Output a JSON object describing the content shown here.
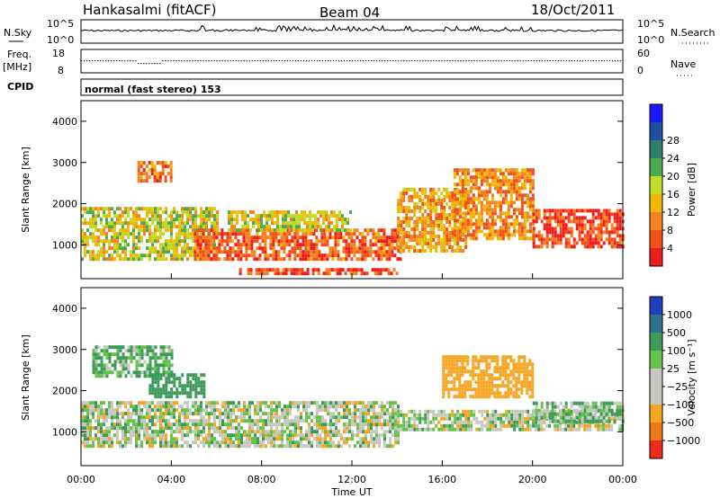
{
  "header": {
    "station": "Hankasalmi (fitACF)",
    "beam": "Beam 04",
    "date": "18/Oct/2011"
  },
  "panels": {
    "nsky": {
      "label": "N.Sky",
      "ytick_top": "10^5",
      "ytick_bottom": "10^0"
    },
    "nsearch": {
      "label": "N.Search",
      "ytick_top": "10^5",
      "ytick_bottom": "10^0"
    },
    "freq": {
      "label_line1": "Freq.",
      "label_line2": "[MHz]",
      "ytick_top": "18",
      "ytick_bottom": "8"
    },
    "nave": {
      "label": "Nave",
      "ytick_top": "60",
      "ytick_bottom": "0"
    },
    "cpid": {
      "label": "CPID",
      "text": "normal (fast stereo) 153"
    }
  },
  "power_panel": {
    "ylabel": "Slant Range [km]",
    "yticks": [
      "1000",
      "2000",
      "3000",
      "4000"
    ],
    "colorbar_label": "Power [dB]",
    "colorbar_ticks": [
      "4",
      "8",
      "12",
      "16",
      "20",
      "24",
      "28"
    ],
    "colors": [
      "#1a1aff",
      "#1f4fa0",
      "#2e7d6e",
      "#4cab4f",
      "#bfdc2b",
      "#f2b705",
      "#f58220",
      "#f25016",
      "#ee1c1c"
    ]
  },
  "velocity_panel": {
    "ylabel": "Slant Range [km]",
    "yticks": [
      "1000",
      "2000",
      "3000",
      "4000"
    ],
    "colorbar_label": "Velocity [m s⁻¹]",
    "colorbar_ticks": [
      "1000",
      "500",
      "100",
      "25",
      "−25",
      "−100",
      "−500",
      "−1000"
    ],
    "colors": [
      "#1f3fbf",
      "#2f6f8f",
      "#3c9a5a",
      "#66c24a",
      "#c8c8c0",
      "#c8c8c0",
      "#f6a623",
      "#f07a1a",
      "#ee2a1a"
    ]
  },
  "time_axis": {
    "label": "Time UT",
    "ticks": [
      "00:00",
      "04:00",
      "08:00",
      "12:00",
      "16:00",
      "20:00",
      "00:00"
    ]
  },
  "chart_data": {
    "type": "heatmap",
    "title": "Hankasalmi (fitACF)  Beam 04  18/Oct/2011",
    "xlabel": "Time UT",
    "x_range_hours": [
      0,
      24
    ],
    "ylabel": "Slant Range [km]",
    "y_range_km": [
      180,
      4500
    ],
    "series": [
      {
        "name": "Power [dB]",
        "z_range": [
          0,
          30
        ],
        "regions": [
          {
            "t0": 0.0,
            "t1": 6.0,
            "r0": 700,
            "r1": 2000,
            "level": 0.55
          },
          {
            "t0": 2.5,
            "t1": 4.0,
            "r0": 2600,
            "r1": 3100,
            "level": 0.8
          },
          {
            "t0": 5.0,
            "t1": 14.2,
            "r0": 700,
            "r1": 1400,
            "level": 0.85
          },
          {
            "t0": 6.5,
            "t1": 12.0,
            "r0": 1400,
            "r1": 1900,
            "level": 0.55
          },
          {
            "t0": 7.0,
            "t1": 14.0,
            "r0": 350,
            "r1": 520,
            "level": 0.9
          },
          {
            "t0": 14.0,
            "t1": 17.0,
            "r0": 900,
            "r1": 2400,
            "level": 0.7
          },
          {
            "t0": 16.5,
            "t1": 20.0,
            "r0": 1200,
            "r1": 2900,
            "level": 0.75
          },
          {
            "t0": 20.0,
            "t1": 24.0,
            "r0": 1000,
            "r1": 1900,
            "level": 0.9
          }
        ]
      },
      {
        "name": "Velocity [m s⁻¹]",
        "z_range": [
          -1000,
          1000
        ],
        "regions": [
          {
            "t0": 0.0,
            "t1": 14.0,
            "r0": 700,
            "r1": 1800,
            "value": 0
          },
          {
            "t0": 0.5,
            "t1": 4.0,
            "r0": 2400,
            "r1": 3100,
            "value": 120
          },
          {
            "t0": 3.0,
            "t1": 5.5,
            "r0": 1900,
            "r1": 2500,
            "value": 300
          },
          {
            "t0": 14.0,
            "t1": 24.0,
            "r0": 1100,
            "r1": 1600,
            "value": 0
          },
          {
            "t0": 16.0,
            "t1": 20.0,
            "r0": 1900,
            "r1": 2900,
            "value": -250
          },
          {
            "t0": 20.0,
            "t1": 24.0,
            "r0": 1300,
            "r1": 1800,
            "value": 80
          }
        ]
      }
    ]
  }
}
